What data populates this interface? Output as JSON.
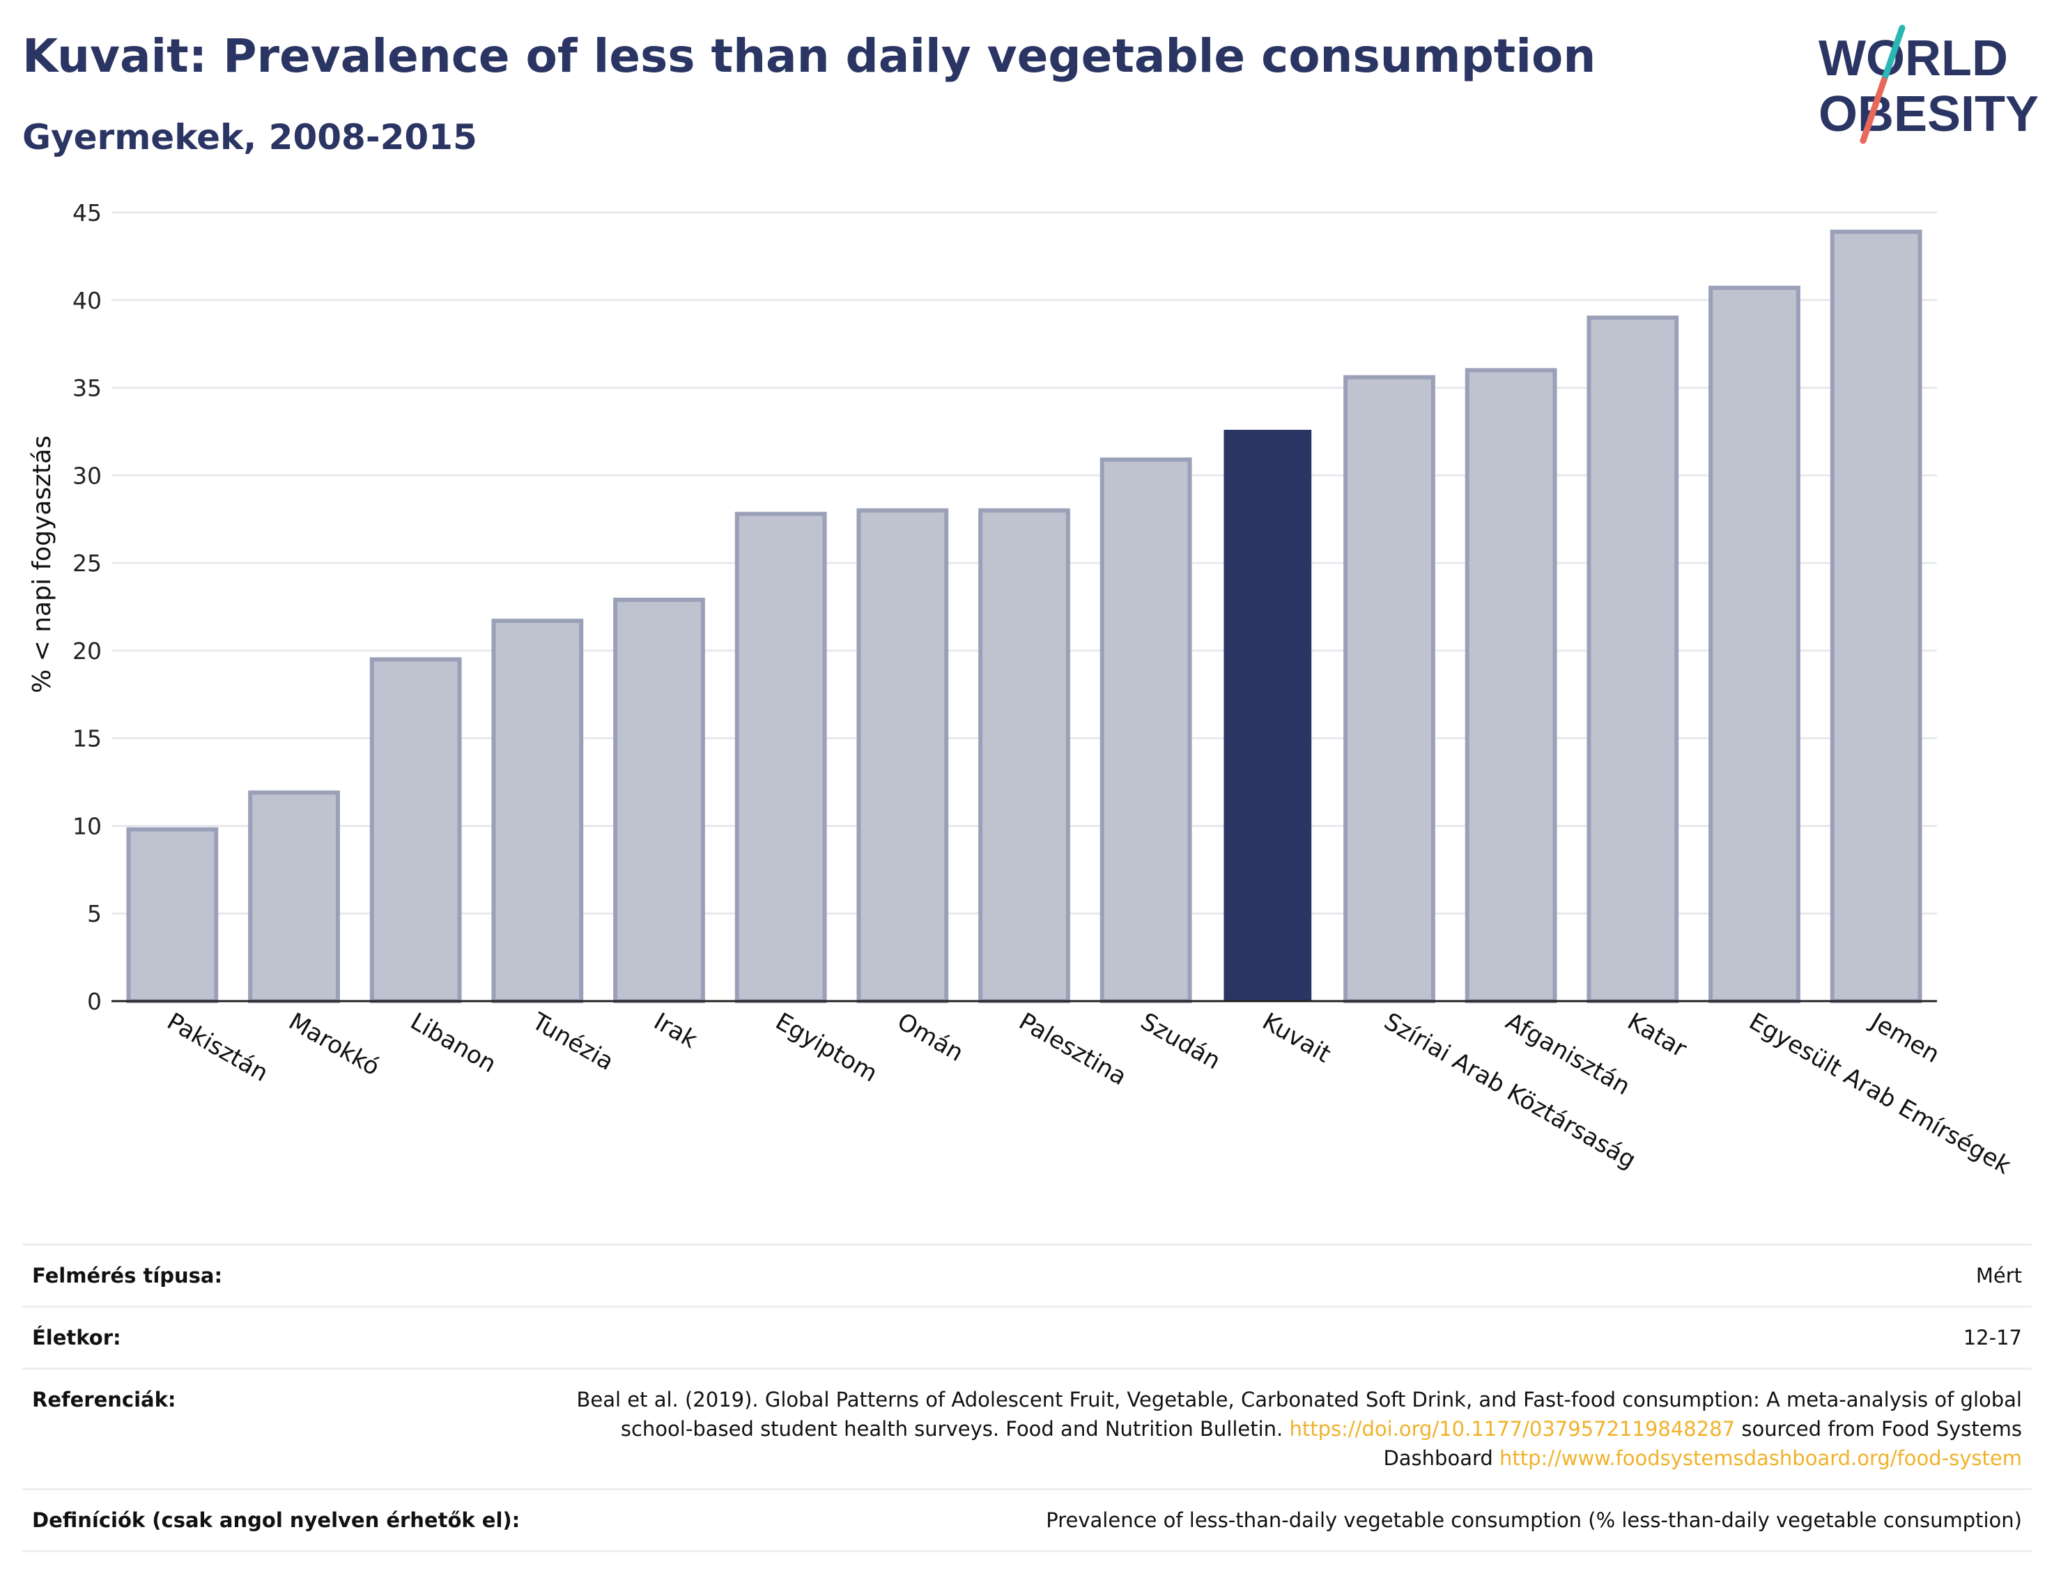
{
  "header": {
    "title": "Kuvait: Prevalence of less than daily vegetable consumption",
    "subtitle": "Gyermekek, 2008-2015"
  },
  "logo": {
    "line1": "WORLD",
    "line2": "OBESITY",
    "colors": {
      "text": "#2b3563",
      "slash_top": "#2ab7b3",
      "slash_bottom": "#e8685a"
    }
  },
  "chart_data": {
    "type": "bar",
    "categories": [
      "Pakisztán",
      "Marokkó",
      "Libanon",
      "Tunézia",
      "Irak",
      "Egyiptom",
      "Omán",
      "Palesztina",
      "Szudán",
      "Kuvait",
      "Szíriai Arab Köztársaság",
      "Afganisztán",
      "Katar",
      "Egyesült Arab Emírségek",
      "Jemen"
    ],
    "values": [
      9.8,
      11.9,
      19.5,
      21.7,
      22.9,
      27.8,
      28.0,
      28.0,
      30.9,
      32.6,
      35.6,
      36.0,
      39.0,
      40.7,
      43.9
    ],
    "highlight": "Kuvait",
    "ylabel": "% < napi fogyasztás",
    "xlabel": "",
    "ylim": [
      0,
      45
    ],
    "yticks": [
      0,
      5,
      10,
      15,
      20,
      25,
      30,
      35,
      40,
      45
    ],
    "grid": true,
    "colors": {
      "bar": "#bfc3d0",
      "bar_edge": "#9aa0b8",
      "highlight": "#2b3563",
      "grid": "#e8e9ee",
      "axis": "#222222"
    }
  },
  "info": {
    "survey_label": "Felmérés típusa:",
    "survey_value": "Mért",
    "age_label": "Életkor:",
    "age_value": "12-17",
    "ref_label": "Referenciák:",
    "ref_text1": "Beal et al. (2019). Global Patterns of Adolescent Fruit, Vegetable, Carbonated Soft Drink, and Fast-food consumption: A meta-analysis of global school-based student health surveys. Food and Nutrition Bulletin. ",
    "ref_link1": "https://doi.org/10.1177/0379572119848287",
    "ref_text2": " sourced from Food Systems Dashboard ",
    "ref_link2": "http://www.foodsystemsdashboard.org/food-system",
    "def_label": "Definíciók (csak angol nyelven érhetők el):",
    "def_value": "Prevalence of less-than-daily vegetable consumption (% less-than-daily vegetable consumption)"
  }
}
